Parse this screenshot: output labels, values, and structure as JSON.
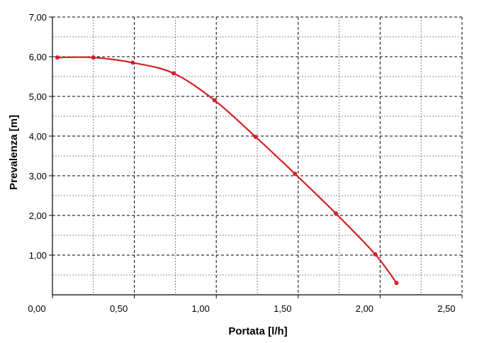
{
  "colors": {
    "series": "#d4202a",
    "grid": "#000000",
    "axis": "#000000",
    "background": "#ffffff"
  },
  "chart_data": {
    "type": "line",
    "title": "",
    "xlabel": "Portata [l/h]",
    "ylabel": "Prevalenza [m]",
    "xlim": [
      0,
      2.5
    ],
    "ylim": [
      0,
      7
    ],
    "grid": true,
    "x_ticks": [
      0,
      0.5,
      1.0,
      1.5,
      2.0,
      2.5
    ],
    "x_tick_labels": [
      "0,00",
      "0,50",
      "1,00",
      "1,50",
      "2,00",
      "2,50"
    ],
    "x_minor_grid": [
      0.25,
      0.75,
      1.25,
      1.75,
      2.25
    ],
    "y_ticks": [
      1,
      2,
      3,
      4,
      5,
      6,
      7
    ],
    "y_tick_labels": [
      "1,00",
      "2,00",
      "3,00",
      "4,00",
      "5,00",
      "6,00",
      "7,00"
    ],
    "y_minor_grid": [
      0.5,
      1.5,
      2.5,
      3.5,
      4.5,
      5.5,
      6.5
    ],
    "series": [
      {
        "x": [
          0.03,
          0.25,
          0.49,
          0.74,
          0.99,
          1.24,
          1.48,
          1.73,
          1.97,
          2.1
        ],
        "y": [
          5.98,
          5.98,
          5.85,
          5.58,
          4.9,
          3.98,
          3.05,
          2.05,
          1.02,
          0.3
        ]
      }
    ]
  }
}
